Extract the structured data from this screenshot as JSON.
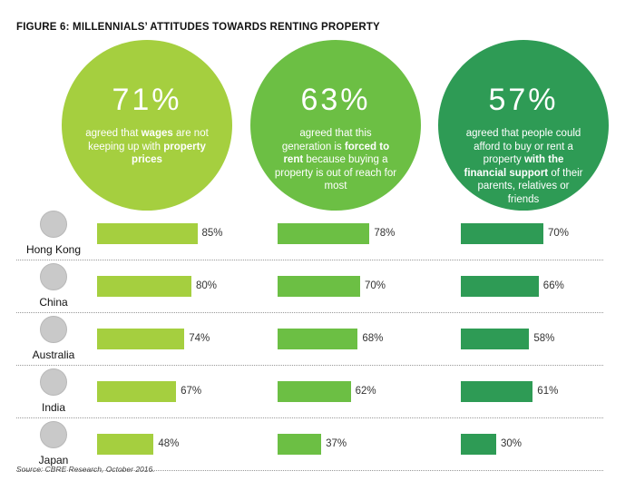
{
  "title": "FIGURE 6: MILLENNIALS’ ATTITUDES TOWARDS RENTING PROPERTY",
  "source": "Source: CBRE Research, October 2016.",
  "colors": {
    "circle_1": "#a5cf3f",
    "circle_2": "#6cbf44",
    "circle_3": "#2e9b55",
    "bar_1": "#a5cf3f",
    "bar_2": "#6cbf44",
    "bar_3": "#2e9b55"
  },
  "chart_data": {
    "type": "bar",
    "title": "FIGURE 6: MILLENNIALS’ ATTITUDES TOWARDS RENTING PROPERTY",
    "categories": [
      "Hong Kong",
      "China",
      "Australia",
      "India",
      "Japan"
    ],
    "xlim": [
      0,
      100
    ],
    "unit": "%",
    "series": [
      {
        "name": "Wages not keeping up with property prices",
        "headline": "71%",
        "headline_value": 71,
        "description": [
          {
            "t": "agreed that "
          },
          {
            "t": "wages",
            "b": true
          },
          {
            "t": " are not keeping up with "
          },
          {
            "t": "property prices",
            "b": true
          }
        ],
        "values": [
          85,
          80,
          74,
          67,
          48
        ],
        "labels": [
          "85%",
          "80%",
          "74%",
          "67%",
          "48%"
        ]
      },
      {
        "name": "Forced to rent",
        "headline": "63%",
        "headline_value": 63,
        "description": [
          {
            "t": "agreed that this generation is "
          },
          {
            "t": "forced to rent",
            "b": true
          },
          {
            "t": " because buying a property is out of reach for most"
          }
        ],
        "values": [
          78,
          70,
          68,
          62,
          37
        ],
        "labels": [
          "78%",
          "70%",
          "68%",
          "62%",
          "37%"
        ]
      },
      {
        "name": "Financial support to buy or rent",
        "headline": "57%",
        "headline_value": 57,
        "description": [
          {
            "t": "agreed that people could afford to buy or rent a property "
          },
          {
            "t": "with the financial support",
            "b": true
          },
          {
            "t": " of their parents, relatives or friends"
          }
        ],
        "values": [
          70,
          66,
          58,
          61,
          30
        ],
        "labels": [
          "70%",
          "66%",
          "58%",
          "61%",
          "30%"
        ]
      }
    ]
  },
  "flags": [
    "hong-kong-flag-icon",
    "china-flag-icon",
    "australia-flag-icon",
    "india-flag-icon",
    "japan-flag-icon"
  ]
}
